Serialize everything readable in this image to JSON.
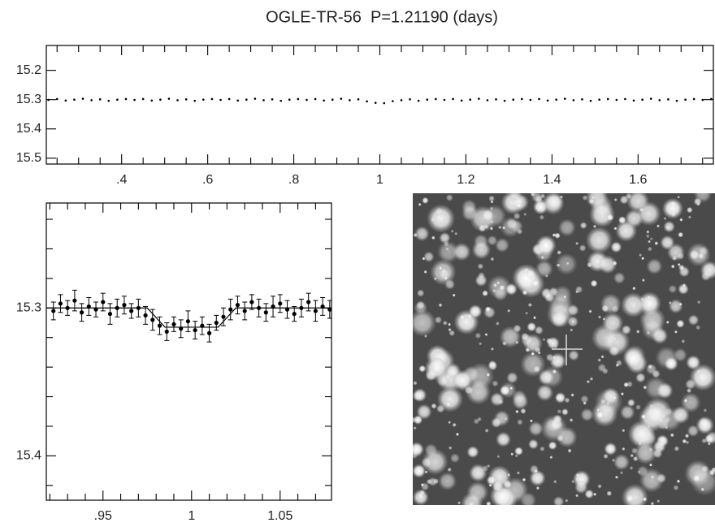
{
  "title": "OGLE-TR-56  P=1.21190 (days)",
  "chart_data": [
    {
      "type": "scatter",
      "color": "#000000",
      "y_inverted": true,
      "xlim": [
        0.225,
        1.775
      ],
      "ylim": [
        15.115,
        15.52
      ],
      "xticks": [
        {
          "value": 0.4,
          "label": ".4"
        },
        {
          "value": 0.6,
          "label": ".6"
        },
        {
          "value": 0.8,
          "label": ".8"
        },
        1,
        1.2,
        1.4,
        1.6
      ],
      "xminorticks": [
        0.25,
        0.3,
        0.35,
        0.45,
        0.5,
        0.55,
        0.65,
        0.7,
        0.75,
        0.85,
        0.9,
        0.95,
        1.05,
        1.1,
        1.15,
        1.25,
        1.3,
        1.35,
        1.45,
        1.5,
        1.55,
        1.65,
        1.7,
        1.75
      ],
      "yticks": [
        15.2,
        15.3,
        15.4,
        15.5
      ],
      "x": [
        0.23,
        0.25,
        0.27,
        0.29,
        0.31,
        0.33,
        0.35,
        0.37,
        0.39,
        0.41,
        0.43,
        0.45,
        0.47,
        0.49,
        0.51,
        0.53,
        0.55,
        0.57,
        0.59,
        0.61,
        0.63,
        0.65,
        0.67,
        0.69,
        0.71,
        0.73,
        0.75,
        0.77,
        0.79,
        0.81,
        0.83,
        0.85,
        0.87,
        0.89,
        0.91,
        0.93,
        0.95,
        0.97,
        0.99,
        1.01,
        1.03,
        1.05,
        1.07,
        1.09,
        1.11,
        1.13,
        1.15,
        1.17,
        1.19,
        1.21,
        1.23,
        1.25,
        1.27,
        1.29,
        1.31,
        1.33,
        1.35,
        1.37,
        1.39,
        1.41,
        1.43,
        1.45,
        1.47,
        1.49,
        1.51,
        1.53,
        1.55,
        1.57,
        1.59,
        1.61,
        1.63,
        1.65,
        1.67,
        1.69,
        1.71,
        1.73,
        1.75,
        1.77
      ],
      "values": [
        15.301,
        15.298,
        15.303,
        15.3,
        15.297,
        15.302,
        15.299,
        15.304,
        15.3,
        15.298,
        15.301,
        15.298,
        15.303,
        15.3,
        15.297,
        15.302,
        15.299,
        15.304,
        15.3,
        15.298,
        15.301,
        15.298,
        15.303,
        15.3,
        15.297,
        15.302,
        15.299,
        15.304,
        15.3,
        15.298,
        15.301,
        15.298,
        15.303,
        15.3,
        15.297,
        15.302,
        15.299,
        15.306,
        15.311,
        15.312,
        15.305,
        15.302,
        15.299,
        15.304,
        15.3,
        15.298,
        15.301,
        15.298,
        15.303,
        15.3,
        15.297,
        15.302,
        15.299,
        15.304,
        15.3,
        15.298,
        15.301,
        15.298,
        15.303,
        15.3,
        15.297,
        15.302,
        15.299,
        15.304,
        15.3,
        15.298,
        15.301,
        15.298,
        15.303,
        15.3,
        15.297,
        15.302,
        15.299,
        15.304,
        15.3,
        15.298,
        15.301,
        15.298
      ]
    },
    {
      "type": "errorbar",
      "color": "#000000",
      "y_inverted": true,
      "xlim": [
        0.918,
        1.079
      ],
      "ylim": [
        15.229,
        15.43
      ],
      "xticks": [
        {
          "value": 0.95,
          "label": ".95"
        },
        1,
        1.05
      ],
      "xminorticks": [
        0.92,
        0.93,
        0.94,
        0.96,
        0.97,
        0.98,
        0.99,
        1.01,
        1.02,
        1.03,
        1.04,
        1.06,
        1.07
      ],
      "yticks": [
        15.3,
        15.4
      ],
      "yminorticks": [
        15.24,
        15.26,
        15.28,
        15.32,
        15.34,
        15.36,
        15.38,
        15.42
      ],
      "x": [
        0.922,
        0.926,
        0.93,
        0.934,
        0.938,
        0.942,
        0.946,
        0.95,
        0.954,
        0.958,
        0.962,
        0.966,
        0.97,
        0.974,
        0.978,
        0.982,
        0.986,
        0.99,
        0.994,
        0.998,
        1.002,
        1.006,
        1.01,
        1.014,
        1.018,
        1.022,
        1.026,
        1.03,
        1.034,
        1.038,
        1.042,
        1.046,
        1.05,
        1.054,
        1.058,
        1.062,
        1.066,
        1.07,
        1.074,
        1.078
      ],
      "values": [
        15.302,
        15.297,
        15.3,
        15.295,
        15.303,
        15.299,
        15.301,
        15.296,
        15.304,
        15.3,
        15.298,
        15.302,
        15.3,
        15.305,
        15.308,
        15.312,
        15.316,
        15.311,
        15.314,
        15.309,
        15.315,
        15.312,
        15.317,
        15.31,
        15.306,
        15.301,
        15.298,
        15.302,
        15.296,
        15.3,
        15.303,
        15.299,
        15.297,
        15.301,
        15.304,
        15.3,
        15.296,
        15.302,
        15.299,
        15.301
      ],
      "errors": [
        0.006,
        0.006,
        0.005,
        0.007,
        0.006,
        0.006,
        0.005,
        0.006,
        0.007,
        0.006,
        0.006,
        0.005,
        0.006,
        0.006,
        0.007,
        0.006,
        0.006,
        0.005,
        0.006,
        0.007,
        0.006,
        0.006,
        0.006,
        0.005,
        0.006,
        0.007,
        0.006,
        0.006,
        0.005,
        0.006,
        0.006,
        0.007,
        0.006,
        0.006,
        0.005,
        0.006,
        0.006,
        0.007,
        0.006,
        0.006
      ],
      "fit": {
        "x": [
          0.918,
          0.975,
          0.985,
          1.015,
          1.025,
          1.079
        ],
        "values": [
          15.3,
          15.3,
          15.313,
          15.313,
          15.3,
          15.3
        ]
      }
    }
  ]
}
